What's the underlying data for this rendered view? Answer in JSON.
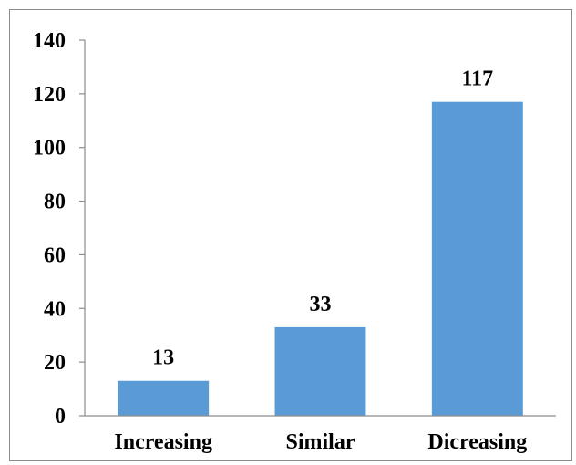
{
  "chart_data": {
    "type": "bar",
    "categories": [
      "Increasing",
      "Similar",
      "Dicreasing"
    ],
    "values": [
      13,
      33,
      117
    ],
    "data_labels": [
      "13",
      "33",
      "117"
    ],
    "title": "",
    "xlabel": "",
    "ylabel": "",
    "ylim": [
      0,
      140
    ],
    "yticks": [
      "0",
      "20",
      "40",
      "60",
      "80",
      "100",
      "120",
      "140"
    ],
    "grid": false,
    "legend": "none",
    "bar_color": "#5b9bd5",
    "axis_color": "#8c8c8c"
  }
}
